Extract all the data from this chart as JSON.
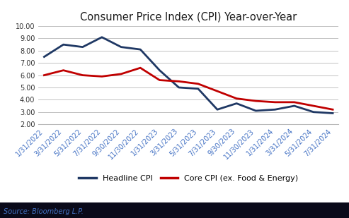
{
  "title": "Consumer Price Index (CPI) Year-over-Year",
  "source": "Source: Bloomberg L.P.",
  "dates": [
    "1/31/2022",
    "3/31/2022",
    "5/31/2022",
    "7/31/2022",
    "9/30/2022",
    "11/30/2022",
    "1/31/2023",
    "3/31/2023",
    "5/31/2023",
    "7/31/2023",
    "9/30/2023",
    "11/30/2023",
    "1/31/2024",
    "3/31/2024",
    "5/31/2024",
    "7/31/2024"
  ],
  "headline_cpi": [
    7.5,
    8.5,
    8.3,
    9.1,
    8.3,
    8.1,
    6.4,
    5.0,
    4.9,
    3.2,
    3.7,
    3.1,
    3.2,
    3.5,
    3.0,
    2.9
  ],
  "core_cpi": [
    6.0,
    6.4,
    6.0,
    5.9,
    6.1,
    6.6,
    5.6,
    5.5,
    5.3,
    4.7,
    4.1,
    3.9,
    3.8,
    3.8,
    3.5,
    3.2
  ],
  "headline_color": "#1f3864",
  "core_color": "#c00000",
  "background_color": "#ffffff",
  "plot_bg_color": "#ffffff",
  "grid_color": "#b8b8b8",
  "ylim": [
    2.0,
    10.0
  ],
  "yticks": [
    2.0,
    3.0,
    4.0,
    5.0,
    6.0,
    7.0,
    8.0,
    9.0,
    10.0
  ],
  "ytick_labels": [
    "2.00",
    "3.00",
    "4.00",
    "5.00",
    "6.00",
    "7.00",
    "8.00",
    "9.00",
    "10.00"
  ],
  "source_bg_color": "#0a0a1a",
  "source_text_color": "#4472c4",
  "title_fontsize": 10.5,
  "legend_fontsize": 8,
  "tick_fontsize": 7,
  "source_fontsize": 7,
  "line_width": 2.0
}
